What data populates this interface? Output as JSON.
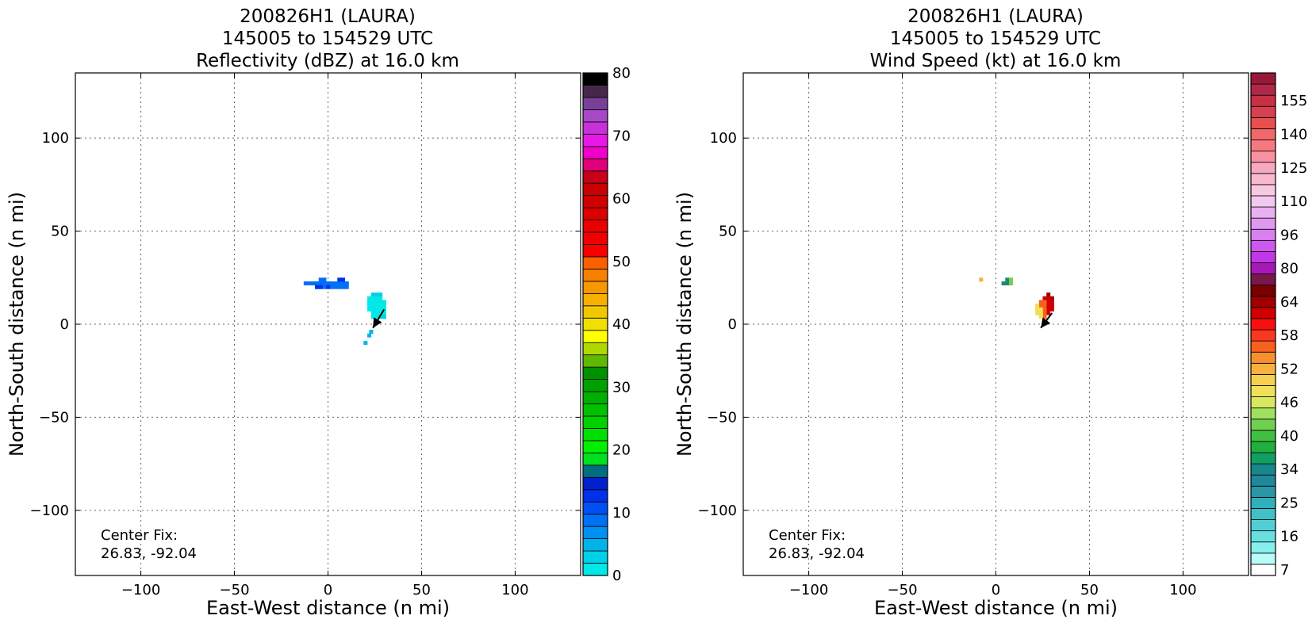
{
  "chart_data": [
    {
      "type": "heatmap",
      "title_lines": [
        "200826H1 (LAURA)",
        "145005 to 154529 UTC",
        "Reflectivity (dBZ) at 16.0 km"
      ],
      "xlabel": "East-West distance (n mi)",
      "ylabel": "North-South distance (n mi)",
      "xlim": [
        -135,
        135
      ],
      "ylim": [
        -135,
        135
      ],
      "xticks": [
        -100,
        -50,
        0,
        50,
        100
      ],
      "yticks": [
        -100,
        -50,
        0,
        50,
        100
      ],
      "xtick_labels": [
        "−100",
        "−50",
        "0",
        "50",
        "100"
      ],
      "ytick_labels": [
        "−100",
        "−50",
        "0",
        "50",
        "100"
      ],
      "grid": true,
      "annotation": [
        "Center Fix:",
        "26.83, -92.04"
      ],
      "colorbar": {
        "min": 0,
        "max": 80,
        "tick_values": [
          0,
          10,
          20,
          30,
          40,
          50,
          60,
          70,
          80
        ],
        "tick_labels": [
          "0",
          "10",
          "20",
          "30",
          "40",
          "50",
          "60",
          "70",
          "80"
        ],
        "colors": [
          "#00e8e8",
          "#00d0e8",
          "#00b4ea",
          "#0090f0",
          "#0070f4",
          "#0050f4",
          "#0030ea",
          "#0020d0",
          "#006e80",
          "#00e020",
          "#00f000",
          "#00e000",
          "#00d000",
          "#00c000",
          "#00b000",
          "#00a000",
          "#009000",
          "#60b800",
          "#b0d800",
          "#ffff00",
          "#f0e000",
          "#f0c800",
          "#f8b000",
          "#f89800",
          "#f88000",
          "#f86000",
          "#f80000",
          "#f00000",
          "#e80000",
          "#d80000",
          "#d00000",
          "#c80000",
          "#c80018",
          "#e0007a",
          "#f000c8",
          "#e818e8",
          "#c830d8",
          "#a848c8",
          "#784098",
          "#48284a",
          "#000000"
        ]
      },
      "data_regions": [
        {
          "name": "band-west",
          "color": "#0070f4",
          "cells": [
            [
              -10,
              22
            ],
            [
              -8,
              22
            ],
            [
              -6,
              22
            ],
            [
              -4,
              22
            ],
            [
              -2,
              22
            ],
            [
              0,
              22
            ],
            [
              2,
              22
            ],
            [
              4,
              22
            ],
            [
              6,
              22
            ],
            [
              8,
              22
            ],
            [
              10,
              22
            ],
            [
              -4,
              24
            ],
            [
              -2,
              24
            ],
            [
              2,
              20
            ],
            [
              4,
              20
            ],
            [
              6,
              20
            ],
            [
              8,
              20
            ],
            [
              10,
              20
            ],
            [
              -2,
              20
            ],
            [
              -12,
              22
            ]
          ]
        },
        {
          "name": "band-dark",
          "color": "#0030ea",
          "cells": [
            [
              -6,
              20
            ],
            [
              -4,
              20
            ],
            [
              0,
              20
            ],
            [
              6,
              24
            ],
            [
              8,
              24
            ]
          ]
        },
        {
          "name": "eyewall-east",
          "color": "#00e8e8",
          "cells": [
            [
              22,
              14
            ],
            [
              24,
              14
            ],
            [
              26,
              14
            ],
            [
              28,
              14
            ],
            [
              22,
              12
            ],
            [
              24,
              12
            ],
            [
              26,
              12
            ],
            [
              28,
              12
            ],
            [
              30,
              12
            ],
            [
              22,
              10
            ],
            [
              24,
              10
            ],
            [
              26,
              10
            ],
            [
              28,
              10
            ],
            [
              30,
              10
            ],
            [
              22,
              8
            ],
            [
              24,
              8
            ],
            [
              26,
              8
            ],
            [
              28,
              8
            ],
            [
              30,
              8
            ],
            [
              24,
              6
            ],
            [
              26,
              6
            ],
            [
              28,
              6
            ],
            [
              30,
              6
            ],
            [
              24,
              4
            ],
            [
              26,
              4
            ]
          ]
        },
        {
          "name": "eyewall-east-mid",
          "color": "#00d0e8",
          "cells": [
            [
              24,
              16
            ],
            [
              26,
              16
            ],
            [
              28,
              16
            ],
            [
              30,
              4
            ],
            [
              28,
              4
            ]
          ]
        },
        {
          "name": "tail-south",
          "color": "#00b4ea",
          "cells": [
            [
              23,
              -4
            ],
            [
              22,
              -6
            ],
            [
              20,
              -10
            ]
          ]
        }
      ],
      "motion_vector": {
        "from": [
          30,
          8
        ],
        "to": [
          24,
          -2
        ]
      }
    },
    {
      "type": "heatmap",
      "title_lines": [
        "200826H1 (LAURA)",
        "145005 to 154529 UTC",
        "Wind Speed (kt) at 16.0 km"
      ],
      "xlabel": "East-West distance (n mi)",
      "ylabel": "North-South distance (n mi)",
      "xlim": [
        -135,
        135
      ],
      "ylim": [
        -135,
        135
      ],
      "xticks": [
        -100,
        -50,
        0,
        50,
        100
      ],
      "yticks": [
        -100,
        -50,
        0,
        50,
        100
      ],
      "xtick_labels": [
        "−100",
        "−50",
        "0",
        "50",
        "100"
      ],
      "ytick_labels": [
        "−100",
        "−50",
        "0",
        "50",
        "100"
      ],
      "grid": true,
      "annotation": [
        "Center Fix:",
        "26.83, -92.04"
      ],
      "colorbar": {
        "tick_labels": [
          "7",
          "16",
          "25",
          "34",
          "40",
          "46",
          "52",
          "58",
          "64",
          "80",
          "96",
          "110",
          "125",
          "140",
          "155"
        ],
        "tick_slot_index": [
          0,
          3,
          6,
          9,
          12,
          15,
          18,
          21,
          24,
          27,
          30,
          33,
          36,
          39,
          42
        ],
        "colors": [
          "#ffffff",
          "#b8fcf8",
          "#88f0ec",
          "#68e0e0",
          "#50d0d4",
          "#40c0c8",
          "#30b0bc",
          "#2898a8",
          "#208898",
          "#18888a",
          "#10a060",
          "#20b040",
          "#40c040",
          "#70d050",
          "#a0e060",
          "#d8e860",
          "#f0e058",
          "#f8d050",
          "#f8b040",
          "#f89030",
          "#f86020",
          "#f83820",
          "#f81010",
          "#d00000",
          "#a00000",
          "#780000",
          "#781848",
          "#a818b8",
          "#c038e8",
          "#d058f0",
          "#d880f0",
          "#e098f0",
          "#e8b0f0",
          "#f0c8f0",
          "#f8c8e0",
          "#f8b8d0",
          "#f8a8c0",
          "#f890a0",
          "#f87880",
          "#f06868",
          "#e85050",
          "#d84050",
          "#c83048",
          "#b02848",
          "#981838"
        ]
      },
      "data_regions": [
        {
          "name": "fragment-west",
          "color": "#f8b040",
          "cells": [
            [
              -8,
              24
            ]
          ]
        },
        {
          "name": "fragment-green",
          "color": "#208870",
          "cells": [
            [
              4,
              22
            ],
            [
              6,
              22
            ],
            [
              6,
              24
            ]
          ]
        },
        {
          "name": "fragment-green-light",
          "color": "#70d050",
          "cells": [
            [
              8,
              22
            ],
            [
              8,
              24
            ]
          ]
        },
        {
          "name": "eyewall-red",
          "color": "#d00000",
          "cells": [
            [
              26,
              14
            ],
            [
              28,
              14
            ],
            [
              28,
              12
            ],
            [
              30,
              12
            ],
            [
              30,
              10
            ],
            [
              28,
              10
            ],
            [
              30,
              8
            ],
            [
              28,
              8
            ],
            [
              28,
              6
            ]
          ]
        },
        {
          "name": "eyewall-orange",
          "color": "#f86020",
          "cells": [
            [
              24,
              12
            ],
            [
              26,
              12
            ],
            [
              24,
              10
            ],
            [
              26,
              10
            ],
            [
              26,
              8
            ],
            [
              26,
              6
            ],
            [
              26,
              4
            ]
          ]
        },
        {
          "name": "eyewall-yellow",
          "color": "#f0e058",
          "cells": [
            [
              22,
              10
            ],
            [
              22,
              8
            ],
            [
              24,
              8
            ],
            [
              24,
              6
            ],
            [
              22,
              6
            ],
            [
              24,
              4
            ]
          ]
        },
        {
          "name": "eyewall-dark",
          "color": "#a00000",
          "cells": [
            [
              30,
              14
            ],
            [
              28,
              16
            ]
          ]
        }
      ],
      "motion_vector": {
        "from": [
          30,
          6
        ],
        "to": [
          24,
          -2
        ]
      }
    }
  ]
}
